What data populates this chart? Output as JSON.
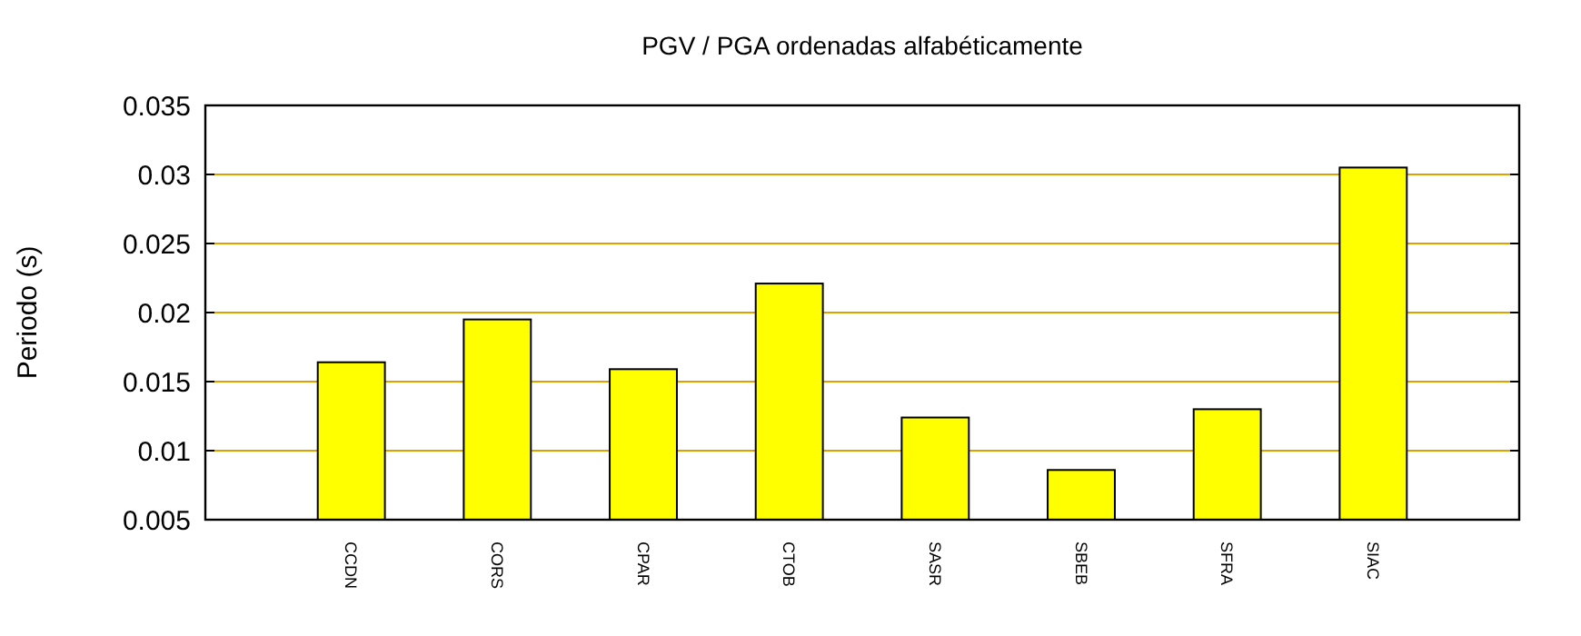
{
  "chart_data": {
    "type": "bar",
    "title": "PGV / PGA ordenadas alfabéticamente",
    "ylabel": "Periodo (s)",
    "categories": [
      "CCDN",
      "CORS",
      "CPAR",
      "CTOB",
      "SASR",
      "SBEB",
      "SFRA",
      "SIAC"
    ],
    "values": [
      0.0164,
      0.0195,
      0.0159,
      0.0221,
      0.0124,
      0.0086,
      0.013,
      0.0305
    ],
    "color": "#ffff00",
    "ylim": [
      0.005,
      0.035
    ],
    "yticks": [
      {
        "value": 0.005,
        "label": "0.005"
      },
      {
        "value": 0.01,
        "label": "0.01"
      },
      {
        "value": 0.015,
        "label": "0.015"
      },
      {
        "value": 0.02,
        "label": "0.02"
      },
      {
        "value": 0.025,
        "label": "0.025"
      },
      {
        "value": 0.03,
        "label": "0.03"
      },
      {
        "value": 0.035,
        "label": "0.035"
      }
    ],
    "grid": "y"
  }
}
